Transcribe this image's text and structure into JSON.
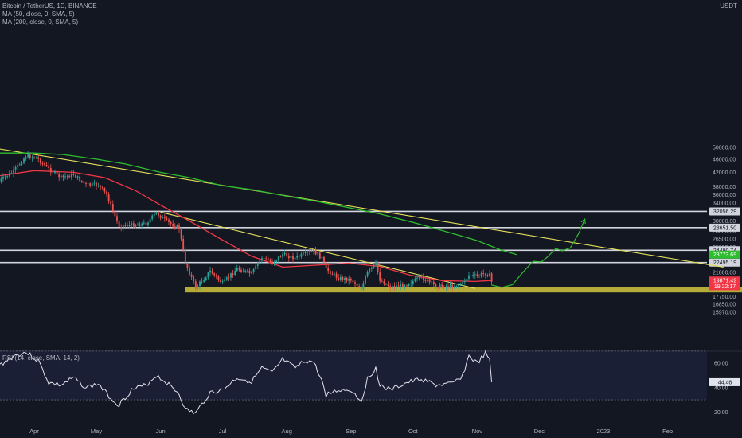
{
  "header": {
    "symbol": "Bitcoin / TetherUS, 1D, BINANCE",
    "ma50_label": "MA (50, close, 0, SMA, 5)",
    "ma200_label": "MA (200, close, 0, SMA, 5)",
    "currency": "USDT",
    "rsi_label": "RSI (14, close, SMA, 14, 2)"
  },
  "colors": {
    "background": "#131722",
    "candle_up": "#26a69a",
    "candle_down": "#ef5350",
    "ma50": "#f23645",
    "ma200": "#2ebd2e",
    "trendline": "#e6e15a",
    "projection": "#2ebd2e",
    "support_zone": "#c8bb3c",
    "horizontal_level": "#d1d4dc",
    "rsi_line": "#e0e3eb"
  },
  "chart_data": [
    {
      "type": "candlestick",
      "title": "Bitcoin / TetherUS, 1D, BINANCE",
      "yscale": "log",
      "ylim": [
        15970,
        54000
      ],
      "price_ticks": [
        50000,
        46000,
        42000,
        38000,
        36000,
        34000,
        30000,
        28000,
        26500,
        25000,
        21000,
        18750,
        17750,
        16850,
        15970
      ],
      "month_labels": [
        {
          "label": "Apr",
          "date": "2022-04-01"
        },
        {
          "label": "May",
          "date": "2022-05-01"
        },
        {
          "label": "Jun",
          "date": "2022-06-01"
        },
        {
          "label": "Jul",
          "date": "2022-07-01"
        },
        {
          "label": "Aug",
          "date": "2022-08-01"
        },
        {
          "label": "Sep",
          "date": "2022-09-01"
        },
        {
          "label": "Oct",
          "date": "2022-10-01"
        },
        {
          "label": "Nov",
          "date": "2022-11-01"
        },
        {
          "label": "Dec",
          "date": "2022-12-01"
        },
        {
          "label": "2023",
          "date": "2023-01-01"
        },
        {
          "label": "Feb",
          "date": "2023-02-01"
        }
      ],
      "close_path": [
        [
          "2022-03-15",
          39500
        ],
        [
          "2022-03-22",
          42300
        ],
        [
          "2022-03-28",
          47000
        ],
        [
          "2022-04-02",
          46500
        ],
        [
          "2022-04-08",
          43000
        ],
        [
          "2022-04-14",
          40500
        ],
        [
          "2022-04-20",
          41400
        ],
        [
          "2022-04-26",
          38500
        ],
        [
          "2022-05-02",
          38500
        ],
        [
          "2022-05-06",
          36000
        ],
        [
          "2022-05-10",
          31000
        ],
        [
          "2022-05-12",
          29000
        ],
        [
          "2022-05-18",
          29200
        ],
        [
          "2022-05-25",
          29500
        ],
        [
          "2022-05-30",
          31700
        ],
        [
          "2022-06-04",
          29900
        ],
        [
          "2022-06-10",
          28500
        ],
        [
          "2022-06-13",
          22500
        ],
        [
          "2022-06-18",
          18900
        ],
        [
          "2022-06-25",
          21200
        ],
        [
          "2022-07-01",
          19500
        ],
        [
          "2022-07-08",
          21600
        ],
        [
          "2022-07-15",
          20800
        ],
        [
          "2022-07-20",
          23300
        ],
        [
          "2022-07-25",
          22500
        ],
        [
          "2022-07-30",
          23800
        ],
        [
          "2022-08-05",
          23200
        ],
        [
          "2022-08-10",
          23900
        ],
        [
          "2022-08-14",
          24350
        ],
        [
          "2022-08-18",
          23200
        ],
        [
          "2022-08-20",
          21500
        ],
        [
          "2022-08-26",
          20200
        ],
        [
          "2022-09-01",
          20000
        ],
        [
          "2022-09-06",
          18800
        ],
        [
          "2022-09-09",
          21000
        ],
        [
          "2022-09-13",
          22300
        ],
        [
          "2022-09-15",
          20000
        ],
        [
          "2022-09-20",
          19000
        ],
        [
          "2022-09-28",
          19400
        ],
        [
          "2022-10-05",
          20300
        ],
        [
          "2022-10-12",
          19100
        ],
        [
          "2022-10-20",
          19100
        ],
        [
          "2022-10-25",
          19500
        ],
        [
          "2022-10-28",
          20600
        ],
        [
          "2022-11-01",
          20500
        ],
        [
          "2022-11-05",
          20900
        ],
        [
          "2022-11-07",
          20600
        ],
        [
          "2022-11-08",
          19680
        ]
      ],
      "ma50_path": [
        [
          "2022-03-15",
          41000
        ],
        [
          "2022-04-01",
          42500
        ],
        [
          "2022-04-20",
          42000
        ],
        [
          "2022-05-05",
          40500
        ],
        [
          "2022-05-20",
          37000
        ],
        [
          "2022-06-01",
          33500
        ],
        [
          "2022-06-15",
          30000
        ],
        [
          "2022-06-30",
          26500
        ],
        [
          "2022-07-15",
          23500
        ],
        [
          "2022-07-30",
          21800
        ],
        [
          "2022-08-15",
          22100
        ],
        [
          "2022-08-31",
          22400
        ],
        [
          "2022-09-15",
          21900
        ],
        [
          "2022-09-30",
          20600
        ],
        [
          "2022-10-15",
          19850
        ],
        [
          "2022-10-31",
          19750
        ],
        [
          "2022-11-08",
          19871.42
        ]
      ],
      "ma200_path": [
        [
          "2022-03-15",
          48000
        ],
        [
          "2022-04-01",
          48000
        ],
        [
          "2022-04-15",
          47500
        ],
        [
          "2022-05-01",
          46000
        ],
        [
          "2022-05-15",
          44500
        ],
        [
          "2022-06-01",
          42000
        ],
        [
          "2022-06-15",
          40500
        ],
        [
          "2022-07-01",
          38300
        ],
        [
          "2022-07-15",
          37300
        ],
        [
          "2022-08-01",
          35600
        ],
        [
          "2022-08-15",
          34400
        ],
        [
          "2022-09-01",
          32800
        ],
        [
          "2022-09-15",
          31500
        ],
        [
          "2022-10-01",
          29700
        ],
        [
          "2022-10-15",
          28100
        ],
        [
          "2022-11-01",
          26200
        ],
        [
          "2022-11-12",
          24600
        ],
        [
          "2022-11-20",
          23773.69
        ]
      ],
      "trendlines": [
        {
          "from": [
            "2022-03-10",
            50000
          ],
          "to": [
            "2023-02-28",
            21800
          ]
        },
        {
          "from": [
            "2022-06-01",
            31900
          ],
          "to": [
            "2022-10-31",
            18800
          ]
        }
      ],
      "projection_path": [
        [
          "2022-11-08",
          19250
        ],
        [
          "2022-11-13",
          18950
        ],
        [
          "2022-11-18",
          19300
        ],
        [
          "2022-11-23",
          21000
        ],
        [
          "2022-11-28",
          22700
        ],
        [
          "2022-12-02",
          22600
        ],
        [
          "2022-12-05",
          23400
        ],
        [
          "2022-12-09",
          24800
        ],
        [
          "2022-12-12",
          24400
        ],
        [
          "2022-12-16",
          24900
        ],
        [
          "2022-12-20",
          27500
        ],
        [
          "2022-12-23",
          30400
        ]
      ],
      "horizontal_levels": [
        {
          "value": 32056.29,
          "label": "32056.29"
        },
        {
          "value": 28651.5,
          "label": "28651.50"
        },
        {
          "value": 24490.74,
          "label": "24490.74"
        },
        {
          "value": 22495.19,
          "label": "22495.19"
        }
      ],
      "support_zone": {
        "from_date": "2022-06-13",
        "to_date": "2023-03-10",
        "low": 18300,
        "high": 18950
      },
      "price_labels": [
        {
          "value": 23773.69,
          "label": "23773.69",
          "color": "#2ebd2e"
        },
        {
          "value": 19680.0,
          "label": "19680.00",
          "color": "#f23645"
        },
        {
          "value": 19871.42,
          "label": "19871.42",
          "color": "#f23645"
        },
        {
          "value": 19100,
          "label": "19:22:17",
          "color": "#f23645"
        }
      ]
    },
    {
      "type": "line",
      "title": "RSI (14, close, SMA, 14, 2)",
      "ylim": [
        15,
        75
      ],
      "ticks": [
        60.0,
        40.0,
        20.0
      ],
      "bands": [
        30,
        70
      ],
      "current": {
        "value": 44.46,
        "label": "44.46"
      },
      "series": [
        {
          "values": [
            [
              "2022-03-15",
              58
            ],
            [
              "2022-03-22",
              66
            ],
            [
              "2022-03-28",
              69
            ],
            [
              "2022-04-03",
              62
            ],
            [
              "2022-04-08",
              44
            ],
            [
              "2022-04-14",
              42
            ],
            [
              "2022-04-20",
              48
            ],
            [
              "2022-04-26",
              40
            ],
            [
              "2022-05-02",
              43
            ],
            [
              "2022-05-06",
              35
            ],
            [
              "2022-05-10",
              28
            ],
            [
              "2022-05-12",
              26
            ],
            [
              "2022-05-18",
              38
            ],
            [
              "2022-05-25",
              42
            ],
            [
              "2022-05-30",
              50
            ],
            [
              "2022-06-04",
              44
            ],
            [
              "2022-06-10",
              35
            ],
            [
              "2022-06-13",
              22
            ],
            [
              "2022-06-18",
              19
            ],
            [
              "2022-06-25",
              36
            ],
            [
              "2022-07-01",
              38
            ],
            [
              "2022-07-08",
              48
            ],
            [
              "2022-07-15",
              45
            ],
            [
              "2022-07-20",
              56
            ],
            [
              "2022-07-25",
              52
            ],
            [
              "2022-07-30",
              63
            ],
            [
              "2022-08-05",
              56
            ],
            [
              "2022-08-10",
              62
            ],
            [
              "2022-08-14",
              61
            ],
            [
              "2022-08-18",
              45
            ],
            [
              "2022-08-20",
              34
            ],
            [
              "2022-08-26",
              38
            ],
            [
              "2022-09-01",
              38
            ],
            [
              "2022-09-06",
              29
            ],
            [
              "2022-09-09",
              47
            ],
            [
              "2022-09-13",
              56
            ],
            [
              "2022-09-15",
              42
            ],
            [
              "2022-09-20",
              38
            ],
            [
              "2022-09-28",
              44
            ],
            [
              "2022-10-05",
              47
            ],
            [
              "2022-10-12",
              42
            ],
            [
              "2022-10-20",
              43
            ],
            [
              "2022-10-25",
              50
            ],
            [
              "2022-10-28",
              66
            ],
            [
              "2022-11-01",
              60
            ],
            [
              "2022-11-05",
              68
            ],
            [
              "2022-11-07",
              62
            ],
            [
              "2022-11-08",
              44.46
            ]
          ]
        }
      ]
    }
  ]
}
